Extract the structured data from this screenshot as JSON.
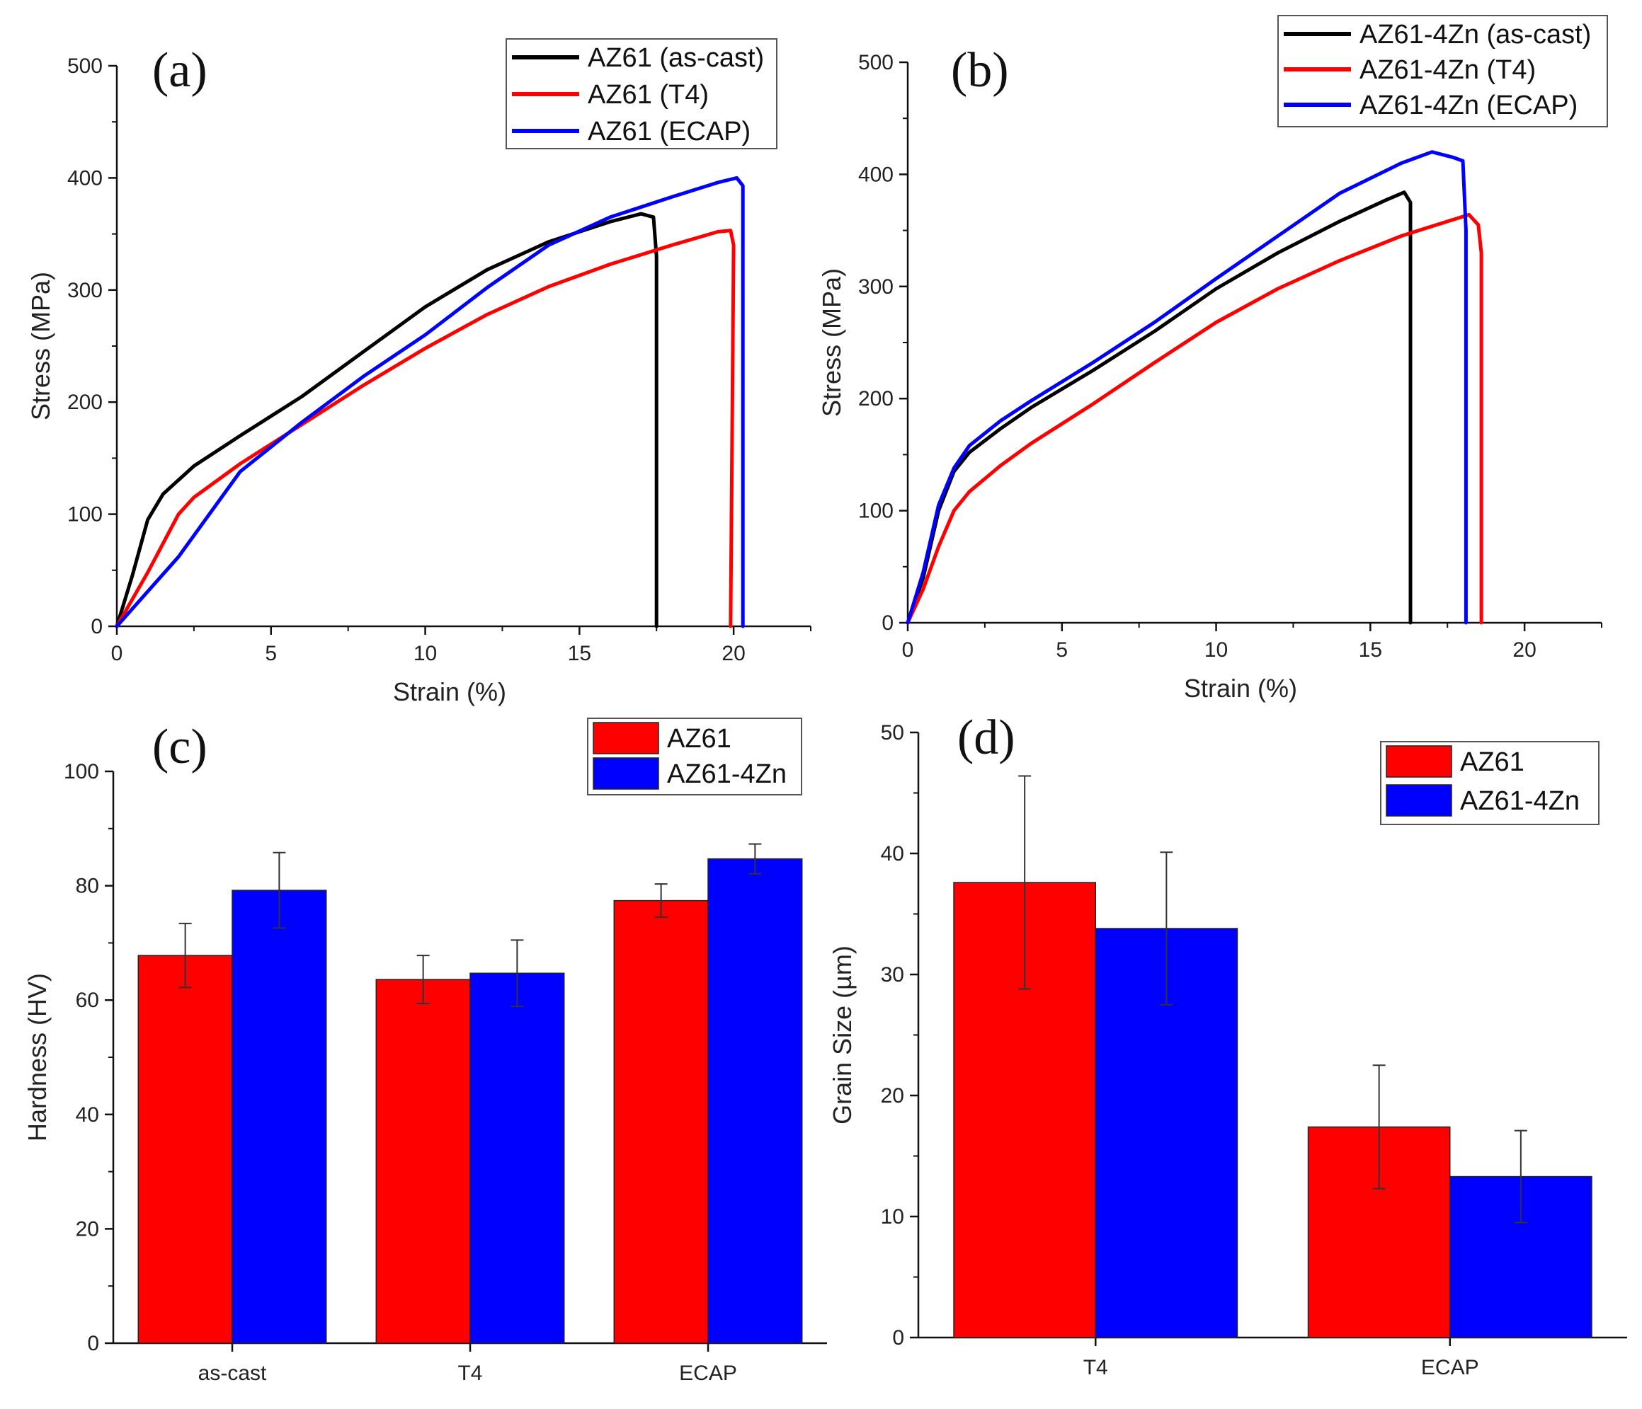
{
  "chart_data": [
    {
      "id": "a",
      "panel_label": "(a)",
      "type": "line",
      "xlabel": "Strain (%)",
      "ylabel": "Stress (MPa)",
      "xlim": [
        0,
        22.5
      ],
      "ylim": [
        0,
        500
      ],
      "xticks": [
        0,
        5,
        10,
        15,
        20
      ],
      "yticks": [
        0,
        100,
        200,
        300,
        400,
        500
      ],
      "legend_position": "top-right",
      "series": [
        {
          "name": "AZ61 (as-cast)",
          "color": "#000000",
          "points": [
            [
              0,
              0
            ],
            [
              0.5,
              45
            ],
            [
              1,
              95
            ],
            [
              1.5,
              118
            ],
            [
              2.5,
              143
            ],
            [
              4,
              170
            ],
            [
              6,
              205
            ],
            [
              8,
              245
            ],
            [
              10,
              285
            ],
            [
              12,
              318
            ],
            [
              14,
              343
            ],
            [
              16,
              361
            ],
            [
              17,
              368
            ],
            [
              17.4,
              365
            ],
            [
              17.5,
              330
            ],
            [
              17.5,
              0
            ]
          ]
        },
        {
          "name": "AZ61 (T4)",
          "color": "#ff0000",
          "points": [
            [
              0,
              0
            ],
            [
              1,
              48
            ],
            [
              2,
              100
            ],
            [
              2.5,
              115
            ],
            [
              4,
              145
            ],
            [
              6,
              180
            ],
            [
              8,
              215
            ],
            [
              10,
              248
            ],
            [
              12,
              278
            ],
            [
              14,
              303
            ],
            [
              16,
              323
            ],
            [
              18,
              340
            ],
            [
              19.5,
              352
            ],
            [
              19.9,
              353
            ],
            [
              20,
              340
            ],
            [
              19.9,
              0
            ]
          ]
        },
        {
          "name": "AZ61 (ECAP)",
          "color": "#0000ff",
          "points": [
            [
              0,
              0
            ],
            [
              2,
              62
            ],
            [
              4,
              138
            ],
            [
              6,
              182
            ],
            [
              8,
              223
            ],
            [
              10,
              260
            ],
            [
              12,
              302
            ],
            [
              14,
              340
            ],
            [
              16,
              365
            ],
            [
              18,
              383
            ],
            [
              19.5,
              396
            ],
            [
              20.1,
              400
            ],
            [
              20.3,
              393
            ],
            [
              20.3,
              0
            ]
          ]
        }
      ]
    },
    {
      "id": "b",
      "panel_label": "(b)",
      "type": "line",
      "xlabel": "Strain (%)",
      "ylabel": "Stress (MPa)",
      "xlim": [
        0,
        22.5
      ],
      "ylim": [
        0,
        500
      ],
      "xticks": [
        0,
        5,
        10,
        15,
        20
      ],
      "yticks": [
        0,
        100,
        200,
        300,
        400,
        500
      ],
      "legend_position": "top-right",
      "series": [
        {
          "name": "AZ61-4Zn (as-cast)",
          "color": "#000000",
          "points": [
            [
              0,
              0
            ],
            [
              0.5,
              40
            ],
            [
              1,
              100
            ],
            [
              1.5,
              135
            ],
            [
              2,
              152
            ],
            [
              3,
              173
            ],
            [
              4,
              192
            ],
            [
              6,
              225
            ],
            [
              8,
              260
            ],
            [
              10,
              298
            ],
            [
              12,
              330
            ],
            [
              14,
              358
            ],
            [
              15.5,
              377
            ],
            [
              16.1,
              384
            ],
            [
              16.3,
              375
            ],
            [
              16.3,
              0
            ]
          ]
        },
        {
          "name": "AZ61-4Zn (T4)",
          "color": "#ff0000",
          "points": [
            [
              0,
              0
            ],
            [
              0.5,
              30
            ],
            [
              1,
              68
            ],
            [
              1.5,
              100
            ],
            [
              2,
              117
            ],
            [
              3,
              140
            ],
            [
              4,
              160
            ],
            [
              6,
              195
            ],
            [
              8,
              232
            ],
            [
              10,
              268
            ],
            [
              12,
              298
            ],
            [
              14,
              323
            ],
            [
              16,
              345
            ],
            [
              17.5,
              358
            ],
            [
              18.2,
              364
            ],
            [
              18.5,
              355
            ],
            [
              18.6,
              330
            ],
            [
              18.6,
              0
            ]
          ]
        },
        {
          "name": "AZ61-4Zn (ECAP)",
          "color": "#0000ff",
          "points": [
            [
              0,
              0
            ],
            [
              0.5,
              45
            ],
            [
              1,
              105
            ],
            [
              1.5,
              138
            ],
            [
              2,
              158
            ],
            [
              3,
              180
            ],
            [
              4,
              198
            ],
            [
              6,
              232
            ],
            [
              8,
              268
            ],
            [
              10,
              307
            ],
            [
              12,
              345
            ],
            [
              14,
              383
            ],
            [
              16,
              410
            ],
            [
              17,
              420
            ],
            [
              17.7,
              415
            ],
            [
              18,
              412
            ],
            [
              18.1,
              350
            ],
            [
              18.1,
              0
            ]
          ]
        }
      ]
    },
    {
      "id": "c",
      "panel_label": "(c)",
      "type": "bar",
      "ylabel": "Hardness (HV)",
      "ylim": [
        0,
        100
      ],
      "yticks": [
        0,
        20,
        40,
        60,
        80,
        100
      ],
      "categories": [
        "as-cast",
        "T4",
        "ECAP"
      ],
      "legend_position": "top-right",
      "series": [
        {
          "name": "AZ61",
          "color": "#ff0000",
          "values": [
            67.8,
            63.6,
            77.4
          ],
          "errors": [
            5.6,
            4.2,
            2.9
          ]
        },
        {
          "name": "AZ61-4Zn",
          "color": "#0000ff",
          "values": [
            79.2,
            64.7,
            84.7
          ],
          "errors": [
            6.6,
            5.8,
            2.6
          ]
        }
      ]
    },
    {
      "id": "d",
      "panel_label": "(d)",
      "type": "bar",
      "ylabel": "Grain Size (µm)",
      "ylim": [
        0,
        50
      ],
      "yticks": [
        0,
        10,
        20,
        30,
        40,
        50
      ],
      "categories": [
        "T4",
        "ECAP"
      ],
      "legend_position": "top-right",
      "series": [
        {
          "name": "AZ61",
          "color": "#ff0000",
          "values": [
            37.6,
            17.4
          ],
          "errors": [
            8.8,
            5.1
          ]
        },
        {
          "name": "AZ61-4Zn",
          "color": "#0000ff",
          "values": [
            33.8,
            13.3
          ],
          "errors": [
            6.3,
            3.8
          ]
        }
      ]
    }
  ]
}
